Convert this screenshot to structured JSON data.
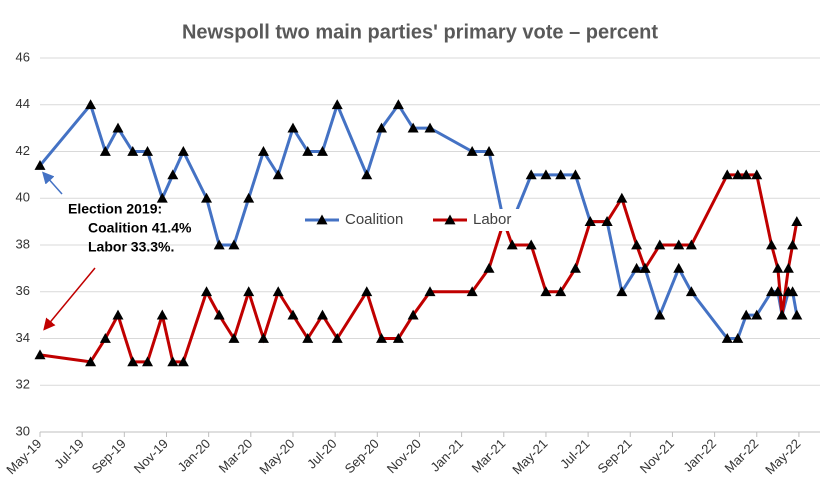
{
  "chart_data": {
    "type": "line",
    "title": "Newspoll two main parties' primary vote –  percent",
    "x": [
      0,
      2.4,
      3.1,
      3.7,
      4.4,
      5.1,
      5.8,
      6.3,
      6.8,
      7.9,
      8.5,
      9.2,
      9.9,
      10.6,
      11.3,
      12.0,
      12.7,
      13.4,
      14.1,
      15.5,
      16.2,
      17.0,
      17.7,
      18.5,
      20.5,
      21.3,
      22.0,
      22.4,
      23.3,
      24.0,
      24.7,
      25.4,
      26.1,
      26.9,
      27.6,
      28.3,
      28.7,
      29.4,
      30.3,
      30.9,
      32.6,
      33.1,
      33.5,
      34.0,
      34.7,
      35.0,
      35.2,
      35.5,
      35.7,
      35.9
    ],
    "series": [
      {
        "name": "Coalition",
        "color": "#4472c4",
        "values": [
          41.4,
          44,
          42,
          43,
          42,
          42,
          40,
          41,
          42,
          40,
          38,
          38,
          40,
          42,
          41,
          43,
          42,
          42,
          44,
          41,
          43,
          44,
          43,
          43,
          42,
          42,
          39,
          39,
          41,
          41,
          41,
          41,
          39,
          39,
          36,
          37,
          37,
          35,
          37,
          36,
          34,
          34,
          35,
          35,
          36,
          36,
          35,
          36,
          36,
          35
        ]
      },
      {
        "name": "Labor",
        "color": "#c00000",
        "values": [
          33.3,
          33,
          34,
          35,
          33,
          33,
          35,
          33,
          33,
          36,
          35,
          34,
          36,
          34,
          36,
          35,
          34,
          35,
          34,
          36,
          34,
          34,
          35,
          36,
          36,
          37,
          39,
          38,
          38,
          36,
          36,
          37,
          39,
          39,
          40,
          38,
          37,
          38,
          38,
          38,
          41,
          41,
          41,
          41,
          38,
          37,
          35,
          37,
          38,
          39
        ]
      }
    ],
    "xlim": [
      0,
      37
    ],
    "xticks": [
      {
        "value": 0,
        "label": "May-19"
      },
      {
        "value": 2,
        "label": "Jul-19"
      },
      {
        "value": 4,
        "label": "Sep-19"
      },
      {
        "value": 6,
        "label": "Nov-19"
      },
      {
        "value": 8,
        "label": "Jan-20"
      },
      {
        "value": 10,
        "label": "Mar-20"
      },
      {
        "value": 12,
        "label": "May-20"
      },
      {
        "value": 14,
        "label": "Jul-20"
      },
      {
        "value": 16,
        "label": "Sep-20"
      },
      {
        "value": 18,
        "label": "Nov-20"
      },
      {
        "value": 20,
        "label": "Jan-21"
      },
      {
        "value": 22,
        "label": "Mar-21"
      },
      {
        "value": 24,
        "label": "May-21"
      },
      {
        "value": 26,
        "label": "Jul-21"
      },
      {
        "value": 28,
        "label": "Sep-21"
      },
      {
        "value": 30,
        "label": "Nov-21"
      },
      {
        "value": 32,
        "label": "Jan-22"
      },
      {
        "value": 34,
        "label": "Mar-22"
      },
      {
        "value": 36,
        "label": "May-22"
      }
    ],
    "ylim": [
      30,
      46
    ],
    "yticks": [
      30,
      32,
      34,
      36,
      38,
      40,
      42,
      44,
      46
    ],
    "grid": true,
    "legend": "center",
    "annotations": [
      "Election 2019:",
      "Coalition  41.4%",
      "Labor 33.3%."
    ]
  }
}
